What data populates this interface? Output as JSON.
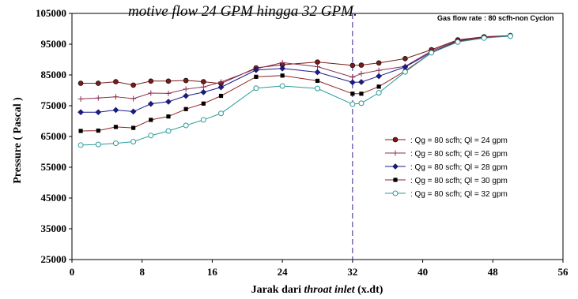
{
  "caption": {
    "text": "motive flow 24 GPM hingga 32 GPM.",
    "corner_note": "Gas flow rate : 80 scfh-non Cyclon"
  },
  "chart_data": {
    "type": "line",
    "xlabel_prefix": "Jarak dari ",
    "xlabel_italic": "throat inlet",
    "xlabel_suffix": "  (x.dt)",
    "ylabel": "Pressure ( Pascal )",
    "xlim": [
      0,
      56
    ],
    "ylim": [
      25000,
      105000
    ],
    "x_ticks": [
      0,
      8,
      16,
      24,
      32,
      40,
      48,
      56
    ],
    "y_ticks": [
      25000,
      35000,
      45000,
      55000,
      65000,
      75000,
      85000,
      95000,
      105000
    ],
    "grid": false,
    "legend_position": "right",
    "vertical_line_x": 32,
    "x": [
      1,
      3,
      5,
      7,
      9,
      11,
      13,
      15,
      17,
      21,
      24,
      28,
      32,
      33,
      35,
      38,
      41,
      44,
      47,
      50
    ],
    "series": [
      {
        "name": ": Qg =  80 scfh; Ql = 24 gpm",
        "color": "#7a1a1a",
        "marker": "circle-filled",
        "values": [
          82300,
          82300,
          82800,
          81700,
          83000,
          83000,
          83200,
          82800,
          82200,
          87300,
          88300,
          89200,
          88100,
          88200,
          88900,
          90300,
          93200,
          96400,
          97400,
          97800
        ]
      },
      {
        "name": ": Qg =  80 scfh; Ql = 26 gpm",
        "color": "#8b2f4f",
        "marker": "plus",
        "values": [
          77200,
          77500,
          77900,
          77300,
          79100,
          79000,
          80400,
          81100,
          82700,
          87000,
          89000,
          87700,
          84300,
          85400,
          86500,
          87800,
          92800,
          96200,
          97200,
          97700
        ]
      },
      {
        "name": ": Qg =  80 scfh; Ql = 28 gpm",
        "color": "#1a1a8f",
        "marker": "diamond",
        "values": [
          72900,
          72900,
          73600,
          73100,
          75600,
          76300,
          78200,
          79400,
          81000,
          86600,
          87100,
          85900,
          82600,
          82700,
          84600,
          87600,
          92400,
          96000,
          97100,
          97700
        ]
      },
      {
        "name": ": Qg =  80 scfh; Ql = 30 gpm",
        "color": "#8f2020",
        "marker": "square",
        "values": [
          66800,
          66900,
          68100,
          67800,
          70400,
          71500,
          73900,
          75700,
          78200,
          84400,
          84800,
          83100,
          78900,
          78900,
          81200,
          86300,
          92200,
          95900,
          97100,
          97700
        ]
      },
      {
        "name": ": Qg =  80 scfh; Ql = 32 gpm",
        "color": "#2a9a9a",
        "marker": "circle-open",
        "values": [
          62200,
          62400,
          62800,
          63300,
          65300,
          66800,
          68600,
          70400,
          72500,
          80700,
          81400,
          80600,
          75500,
          75800,
          79200,
          86000,
          92200,
          95700,
          97000,
          97600
        ]
      }
    ]
  }
}
